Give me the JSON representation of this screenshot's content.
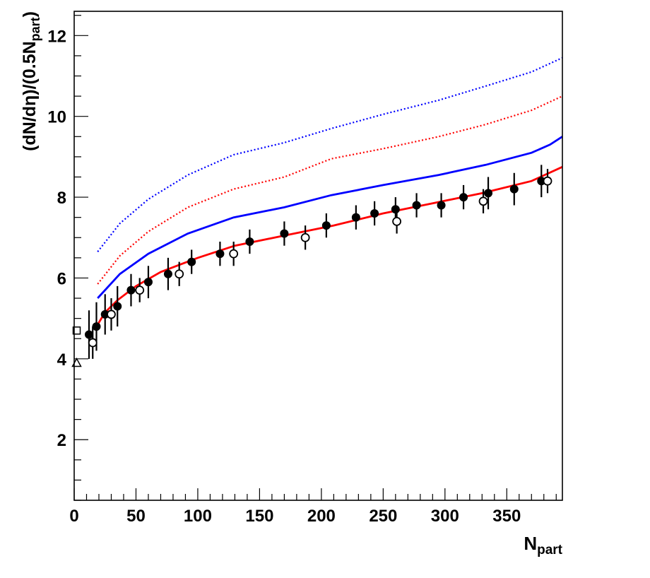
{
  "chart_data": {
    "type": "scatter",
    "xlabel_main": "N",
    "xlabel_sub": "part",
    "ylabel_main": "(dN/dη)/(0.5N",
    "ylabel_sub": "part",
    "ylabel_close": ")",
    "xlim": [
      0,
      395
    ],
    "ylim": [
      0.5,
      12.6
    ],
    "x_ticks": [
      0,
      50,
      100,
      150,
      200,
      250,
      300,
      350
    ],
    "y_ticks": [
      2,
      4,
      6,
      8,
      10,
      12
    ],
    "grid": false,
    "series": [
      {
        "kind": "points",
        "marker": "filled-circle",
        "color": "#000000",
        "points": [
          {
            "x": 12,
            "y": 4.6,
            "err": 0.6
          },
          {
            "x": 18,
            "y": 4.8,
            "err": 0.6
          },
          {
            "x": 25,
            "y": 5.1,
            "err": 0.5
          },
          {
            "x": 35,
            "y": 5.3,
            "err": 0.5
          },
          {
            "x": 46,
            "y": 5.7,
            "err": 0.4
          },
          {
            "x": 60,
            "y": 5.9,
            "err": 0.4
          },
          {
            "x": 76,
            "y": 6.1,
            "err": 0.4
          },
          {
            "x": 95,
            "y": 6.4,
            "err": 0.3
          },
          {
            "x": 118,
            "y": 6.6,
            "err": 0.3
          },
          {
            "x": 142,
            "y": 6.9,
            "err": 0.3
          },
          {
            "x": 170,
            "y": 7.1,
            "err": 0.3
          },
          {
            "x": 204,
            "y": 7.3,
            "err": 0.3
          },
          {
            "x": 228,
            "y": 7.5,
            "err": 0.3
          },
          {
            "x": 243,
            "y": 7.6,
            "err": 0.3
          },
          {
            "x": 260,
            "y": 7.7,
            "err": 0.3
          },
          {
            "x": 277,
            "y": 7.8,
            "err": 0.3
          },
          {
            "x": 297,
            "y": 7.8,
            "err": 0.3
          },
          {
            "x": 315,
            "y": 8.0,
            "err": 0.3
          },
          {
            "x": 335,
            "y": 8.1,
            "err": 0.4
          },
          {
            "x": 356,
            "y": 8.2,
            "err": 0.4
          },
          {
            "x": 378,
            "y": 8.4,
            "err": 0.4
          }
        ]
      },
      {
        "kind": "points",
        "marker": "open-circle",
        "color": "#000000",
        "points": [
          {
            "x": 15,
            "y": 4.4,
            "err": 0.4
          },
          {
            "x": 30,
            "y": 5.1,
            "err": 0.4
          },
          {
            "x": 53,
            "y": 5.7,
            "err": 0.3
          },
          {
            "x": 85,
            "y": 6.1,
            "err": 0.3
          },
          {
            "x": 129,
            "y": 6.6,
            "err": 0.3
          },
          {
            "x": 187,
            "y": 7.0,
            "err": 0.3
          },
          {
            "x": 261,
            "y": 7.4,
            "err": 0.3
          },
          {
            "x": 331,
            "y": 7.9,
            "err": 0.3
          },
          {
            "x": 383,
            "y": 8.4,
            "err": 0.3
          }
        ]
      },
      {
        "kind": "points",
        "marker": "open-square",
        "color": "#000000",
        "points": [
          {
            "x": 2,
            "y": 4.7,
            "err": 0
          }
        ]
      },
      {
        "kind": "points",
        "marker": "open-triangle",
        "color": "#000000",
        "points": [
          {
            "x": 2,
            "y": 3.9,
            "err": 0
          }
        ]
      },
      {
        "kind": "line",
        "style": "solid",
        "color": "#ff0000",
        "x": [
          18,
          25,
          35,
          50,
          70,
          100,
          130,
          170,
          210,
          250,
          290,
          330,
          370,
          395
        ],
        "y": [
          4.8,
          5.15,
          5.45,
          5.8,
          6.15,
          6.5,
          6.8,
          7.05,
          7.3,
          7.6,
          7.85,
          8.1,
          8.4,
          8.75
        ]
      },
      {
        "kind": "line",
        "style": "solid",
        "color": "#0000ff",
        "x": [
          19,
          37,
          60,
          92,
          129,
          170,
          208,
          250,
          295,
          333,
          370,
          385,
          395
        ],
        "y": [
          5.5,
          6.1,
          6.6,
          7.1,
          7.5,
          7.75,
          8.05,
          8.3,
          8.55,
          8.8,
          9.1,
          9.3,
          9.5
        ]
      },
      {
        "kind": "line",
        "style": "dotted",
        "color": "#ff0000",
        "x": [
          19,
          37,
          60,
          92,
          129,
          170,
          208,
          250,
          295,
          333,
          370,
          395
        ],
        "y": [
          5.85,
          6.55,
          7.15,
          7.75,
          8.2,
          8.5,
          8.95,
          9.2,
          9.5,
          9.8,
          10.15,
          10.5
        ]
      },
      {
        "kind": "line",
        "style": "dotted",
        "color": "#0000ff",
        "x": [
          19,
          37,
          60,
          92,
          129,
          170,
          208,
          250,
          295,
          333,
          370,
          395
        ],
        "y": [
          6.65,
          7.35,
          7.95,
          8.55,
          9.05,
          9.35,
          9.7,
          10.05,
          10.4,
          10.75,
          11.1,
          11.45
        ]
      }
    ]
  }
}
